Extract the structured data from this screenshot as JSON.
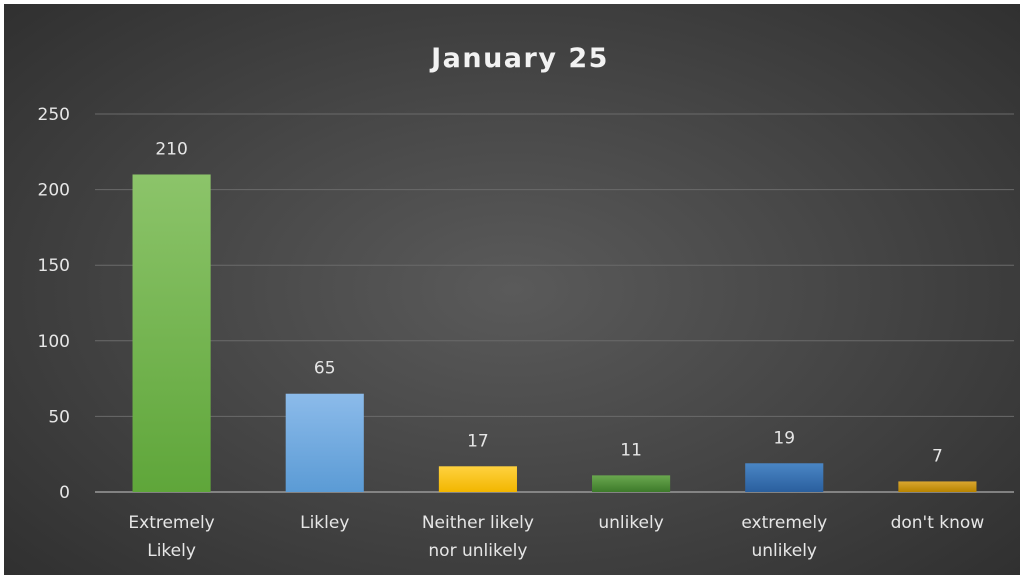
{
  "chart_data": {
    "type": "bar",
    "title": "January 25",
    "xlabel": "",
    "ylabel": "",
    "ylim": [
      0,
      250
    ],
    "yticks": [
      0,
      50,
      100,
      150,
      200,
      250
    ],
    "grid": true,
    "legend": "none",
    "categories": [
      [
        "Extremely",
        "Likely"
      ],
      [
        "Likley"
      ],
      [
        "Neither likely",
        "nor unlikely"
      ],
      [
        "unlikely"
      ],
      [
        "extremely",
        "unlikely"
      ],
      [
        "don't know"
      ]
    ],
    "values": [
      210,
      65,
      17,
      11,
      19,
      7
    ],
    "colors": [
      [
        "#8cc46a",
        "#5fa63a"
      ],
      [
        "#8cbbea",
        "#5b9bd5"
      ],
      [
        "#ffd23f",
        "#f2b600"
      ],
      [
        "#6aa84f",
        "#3d7a2a"
      ],
      [
        "#4a86c5",
        "#2a5f9e"
      ],
      [
        "#d9a630",
        "#b88400"
      ]
    ]
  }
}
